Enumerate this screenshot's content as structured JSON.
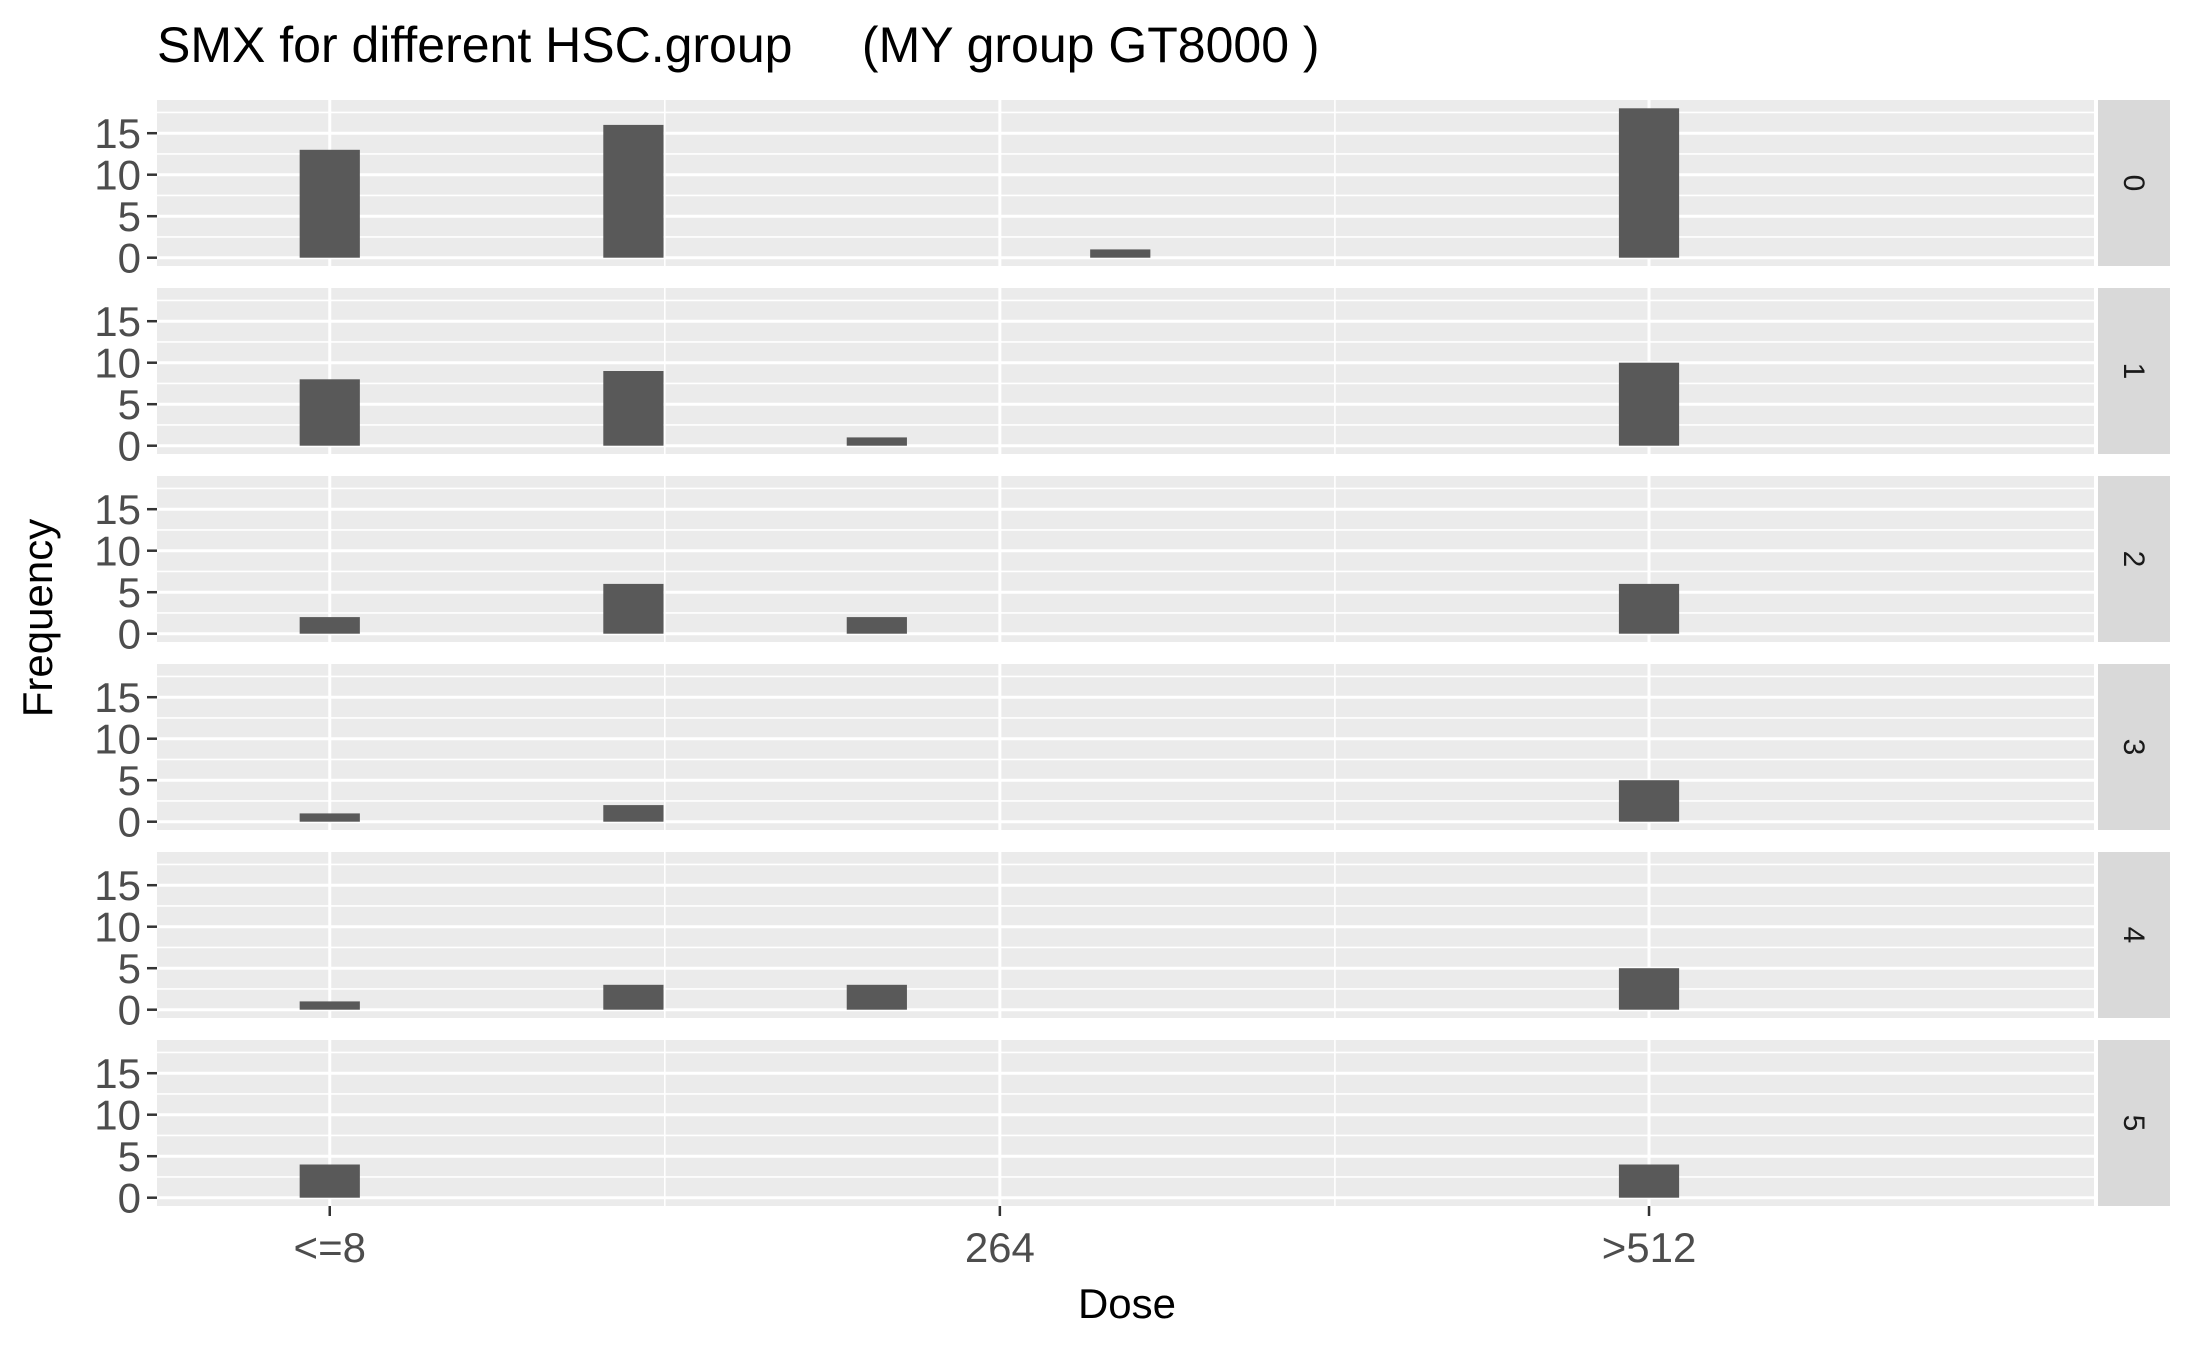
{
  "chart_data": {
    "type": "bar",
    "title": "SMX for different HSC.group     (MY group GT8000 )",
    "xlabel": "Dose",
    "ylabel": "Frequency",
    "x_tick_labels": [
      {
        "value": 8,
        "label": "<=8"
      },
      {
        "value": 264,
        "label": "264"
      },
      {
        "value": 512,
        "label": ">512"
      }
    ],
    "xlim": [
      -58,
      682
    ],
    "x_major_breaks": [
      8,
      264
    ],
    "x_minor_breaks": [
      136,
      392
    ],
    "ylim": [
      -1,
      19
    ],
    "y_ticks": [
      0,
      5,
      10,
      15
    ],
    "bar_width": 23,
    "grid": true,
    "colors": {
      "bar": "#595959",
      "panel_bg": "#ebebeb",
      "grid": "#ffffff",
      "strip_bg": "#d9d9d9",
      "tick_label": "#4d4d4d"
    },
    "facets": [
      {
        "label": "0",
        "bars": [
          {
            "x": 8,
            "y": 13
          },
          {
            "x": 124,
            "y": 16
          },
          {
            "x": 310,
            "y": 1
          },
          {
            "x": 512,
            "y": 18
          }
        ]
      },
      {
        "label": "1",
        "bars": [
          {
            "x": 8,
            "y": 8
          },
          {
            "x": 124,
            "y": 9
          },
          {
            "x": 217,
            "y": 1
          },
          {
            "x": 512,
            "y": 10
          }
        ]
      },
      {
        "label": "2",
        "bars": [
          {
            "x": 8,
            "y": 2
          },
          {
            "x": 124,
            "y": 6
          },
          {
            "x": 217,
            "y": 2
          },
          {
            "x": 512,
            "y": 6
          }
        ]
      },
      {
        "label": "3",
        "bars": [
          {
            "x": 8,
            "y": 1
          },
          {
            "x": 124,
            "y": 2
          },
          {
            "x": 512,
            "y": 5
          }
        ]
      },
      {
        "label": "4",
        "bars": [
          {
            "x": 8,
            "y": 1
          },
          {
            "x": 124,
            "y": 3
          },
          {
            "x": 217,
            "y": 3
          },
          {
            "x": 512,
            "y": 5
          }
        ]
      },
      {
        "label": "5",
        "bars": [
          {
            "x": 8,
            "y": 4
          },
          {
            "x": 512,
            "y": 4
          }
        ]
      }
    ]
  }
}
